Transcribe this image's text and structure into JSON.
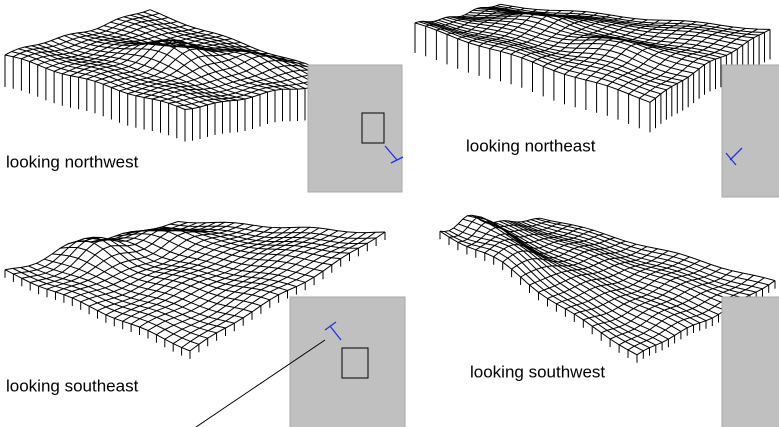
{
  "panels": [
    {
      "label": "looking northwest"
    },
    {
      "label": "looking northeast"
    },
    {
      "label": "looking southeast"
    },
    {
      "label": "looking southwest"
    }
  ]
}
